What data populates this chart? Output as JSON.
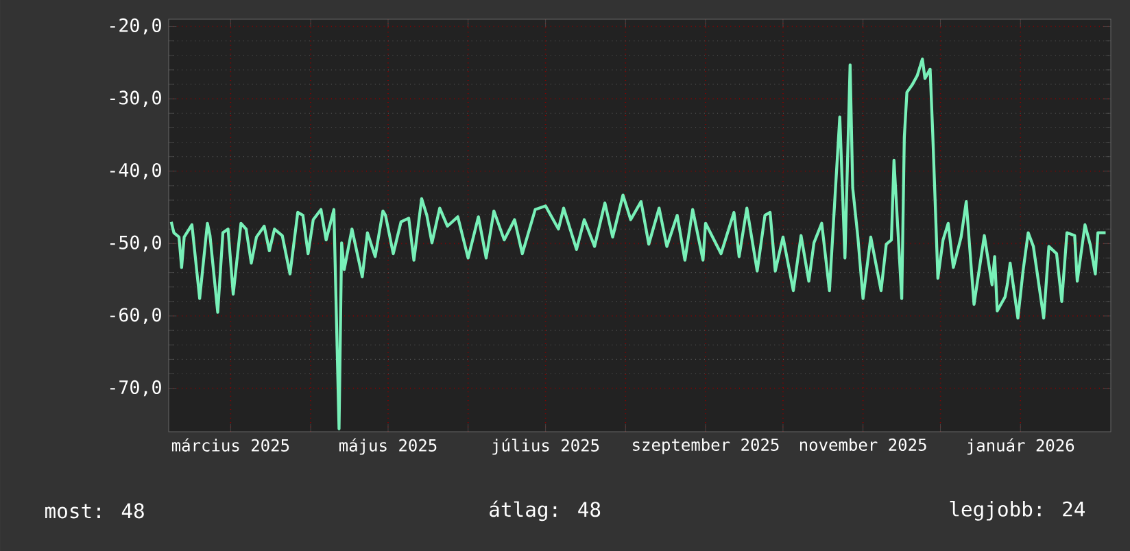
{
  "chart_data": {
    "type": "line",
    "x": [
      "2025-02-06",
      "2025-02-07",
      "2025-02-09",
      "2025-02-10",
      "2025-02-11",
      "2025-02-14",
      "2025-02-17",
      "2025-02-20",
      "2025-02-21",
      "2025-02-24",
      "2025-02-26",
      "2025-02-28",
      "2025-03-02",
      "2025-03-05",
      "2025-03-07",
      "2025-03-09",
      "2025-03-11",
      "2025-03-14",
      "2025-03-16",
      "2025-03-18",
      "2025-03-21",
      "2025-03-24",
      "2025-03-27",
      "2025-03-29",
      "2025-03-31",
      "2025-04-02",
      "2025-04-05",
      "2025-04-07",
      "2025-04-10",
      "2025-04-12",
      "2025-04-13",
      "2025-04-14",
      "2025-04-17",
      "2025-04-21",
      "2025-04-23",
      "2025-04-26",
      "2025-04-29",
      "2025-04-30",
      "2025-05-03",
      "2025-05-06",
      "2025-05-09",
      "2025-05-11",
      "2025-05-14",
      "2025-05-16",
      "2025-05-18",
      "2025-05-21",
      "2025-05-24",
      "2025-05-28",
      "2025-06-01",
      "2025-06-05",
      "2025-06-08",
      "2025-06-11",
      "2025-06-15",
      "2025-06-19",
      "2025-06-22",
      "2025-06-27",
      "2025-07-01",
      "2025-07-06",
      "2025-07-08",
      "2025-07-13",
      "2025-07-16",
      "2025-07-20",
      "2025-07-24",
      "2025-07-27",
      "2025-07-31",
      "2025-08-03",
      "2025-08-07",
      "2025-08-10",
      "2025-08-14",
      "2025-08-17",
      "2025-08-21",
      "2025-08-24",
      "2025-08-27",
      "2025-08-31",
      "2025-09-01",
      "2025-09-07",
      "2025-09-12",
      "2025-09-14",
      "2025-09-17",
      "2025-09-21",
      "2025-09-24",
      "2025-09-26",
      "2025-09-28",
      "2025-10-01",
      "2025-10-05",
      "2025-10-08",
      "2025-10-11",
      "2025-10-13",
      "2025-10-16",
      "2025-10-19",
      "2025-10-21",
      "2025-10-23",
      "2025-10-25",
      "2025-10-27",
      "2025-10-28",
      "2025-10-30",
      "2025-11-01",
      "2025-11-04",
      "2025-11-08",
      "2025-11-10",
      "2025-11-12",
      "2025-11-13",
      "2025-11-16",
      "2025-11-17",
      "2025-11-18",
      "2025-11-20",
      "2025-11-22",
      "2025-11-24",
      "2025-11-25",
      "2025-11-27",
      "2025-11-28",
      "2025-11-30",
      "2025-12-02",
      "2025-12-04",
      "2025-12-06",
      "2025-12-09",
      "2025-12-11",
      "2025-12-14",
      "2025-12-18",
      "2025-12-21",
      "2025-12-22",
      "2025-12-23",
      "2025-12-26",
      "2025-12-27",
      "2025-12-28",
      "2025-12-31",
      "2026-01-02",
      "2026-01-04",
      "2026-01-06",
      "2026-01-10",
      "2026-01-12",
      "2026-01-15",
      "2026-01-17",
      "2026-01-19",
      "2026-01-22",
      "2026-01-23",
      "2026-01-26",
      "2026-01-28",
      "2026-01-30",
      "2026-01-31",
      "2026-02-03"
    ],
    "series": [
      {
        "color": "#78f0b8",
        "values": [
          -47.0,
          -48.5,
          -49.1,
          -53.3,
          -49.1,
          -47.4,
          -57.6,
          -47.2,
          -48.9,
          -59.5,
          -48.5,
          -48.0,
          -57.0,
          -47.2,
          -48.0,
          -52.7,
          -49.1,
          -47.6,
          -51.0,
          -48.0,
          -48.9,
          -54.2,
          -45.7,
          -46.1,
          -51.4,
          -46.7,
          -45.3,
          -49.5,
          -45.3,
          -75.6,
          -49.9,
          -53.6,
          -48.0,
          -54.6,
          -48.5,
          -51.8,
          -45.5,
          -46.1,
          -51.4,
          -47.0,
          -46.5,
          -52.3,
          -43.8,
          -46.1,
          -49.9,
          -45.1,
          -47.6,
          -46.3,
          -52.0,
          -46.3,
          -52.0,
          -45.5,
          -49.5,
          -46.7,
          -51.4,
          -45.3,
          -44.8,
          -48.0,
          -45.1,
          -50.8,
          -46.7,
          -50.4,
          -44.4,
          -49.1,
          -43.3,
          -46.7,
          -44.2,
          -50.1,
          -45.1,
          -50.4,
          -46.1,
          -52.3,
          -45.3,
          -52.3,
          -47.2,
          -51.4,
          -45.7,
          -51.8,
          -45.1,
          -53.8,
          -46.1,
          -45.7,
          -53.8,
          -49.1,
          -56.5,
          -48.9,
          -55.2,
          -49.9,
          -47.2,
          -56.5,
          -44.4,
          -32.5,
          -52.0,
          -25.3,
          -42.3,
          -49.1,
          -57.6,
          -49.1,
          -56.5,
          -50.1,
          -49.5,
          -38.5,
          -57.6,
          -35.3,
          -29.1,
          -28.1,
          -26.8,
          -24.5,
          -27.2,
          -25.9,
          -34.7,
          -54.8,
          -49.5,
          -47.2,
          -53.3,
          -49.1,
          -44.2,
          -58.4,
          -48.9,
          -55.7,
          -51.8,
          -59.3,
          -57.4,
          -55.5,
          -52.7,
          -60.3,
          -53.8,
          -48.5,
          -50.4,
          -60.3,
          -50.4,
          -51.4,
          -58.0,
          -48.5,
          -48.9,
          -55.2,
          -47.4,
          -50.1,
          -54.2,
          -48.5,
          -48.5
        ]
      }
    ],
    "xlim": [
      "2025-02-05",
      "2026-02-05"
    ],
    "xticks": [
      {
        "value": "2025-03-01",
        "label": "március 2025"
      },
      {
        "value": "2025-04-01",
        "label": null
      },
      {
        "value": "2025-05-01",
        "label": "május 2025"
      },
      {
        "value": "2025-06-01",
        "label": null
      },
      {
        "value": "2025-07-01",
        "label": "július 2025"
      },
      {
        "value": "2025-08-01",
        "label": null
      },
      {
        "value": "2025-09-01",
        "label": "szeptember 2025"
      },
      {
        "value": "2025-10-01",
        "label": null
      },
      {
        "value": "2025-11-01",
        "label": "november 2025"
      },
      {
        "value": "2025-12-01",
        "label": null
      },
      {
        "value": "2026-01-01",
        "label": "január 2026"
      }
    ],
    "ylim": [
      -76,
      -19
    ],
    "yticks": [
      {
        "value": -70,
        "label": "-70,0"
      },
      {
        "value": -60,
        "label": "-60,0"
      },
      {
        "value": -50,
        "label": "-50,0"
      },
      {
        "value": -40,
        "label": "-40,0"
      },
      {
        "value": -30,
        "label": "-30,0"
      },
      {
        "value": -20,
        "label": "-20,0"
      }
    ],
    "grid": true,
    "marker": "none",
    "line_style": "solid",
    "annotations": [
      "most: 48",
      "átlag: 48",
      "legjobb: 24"
    ]
  }
}
